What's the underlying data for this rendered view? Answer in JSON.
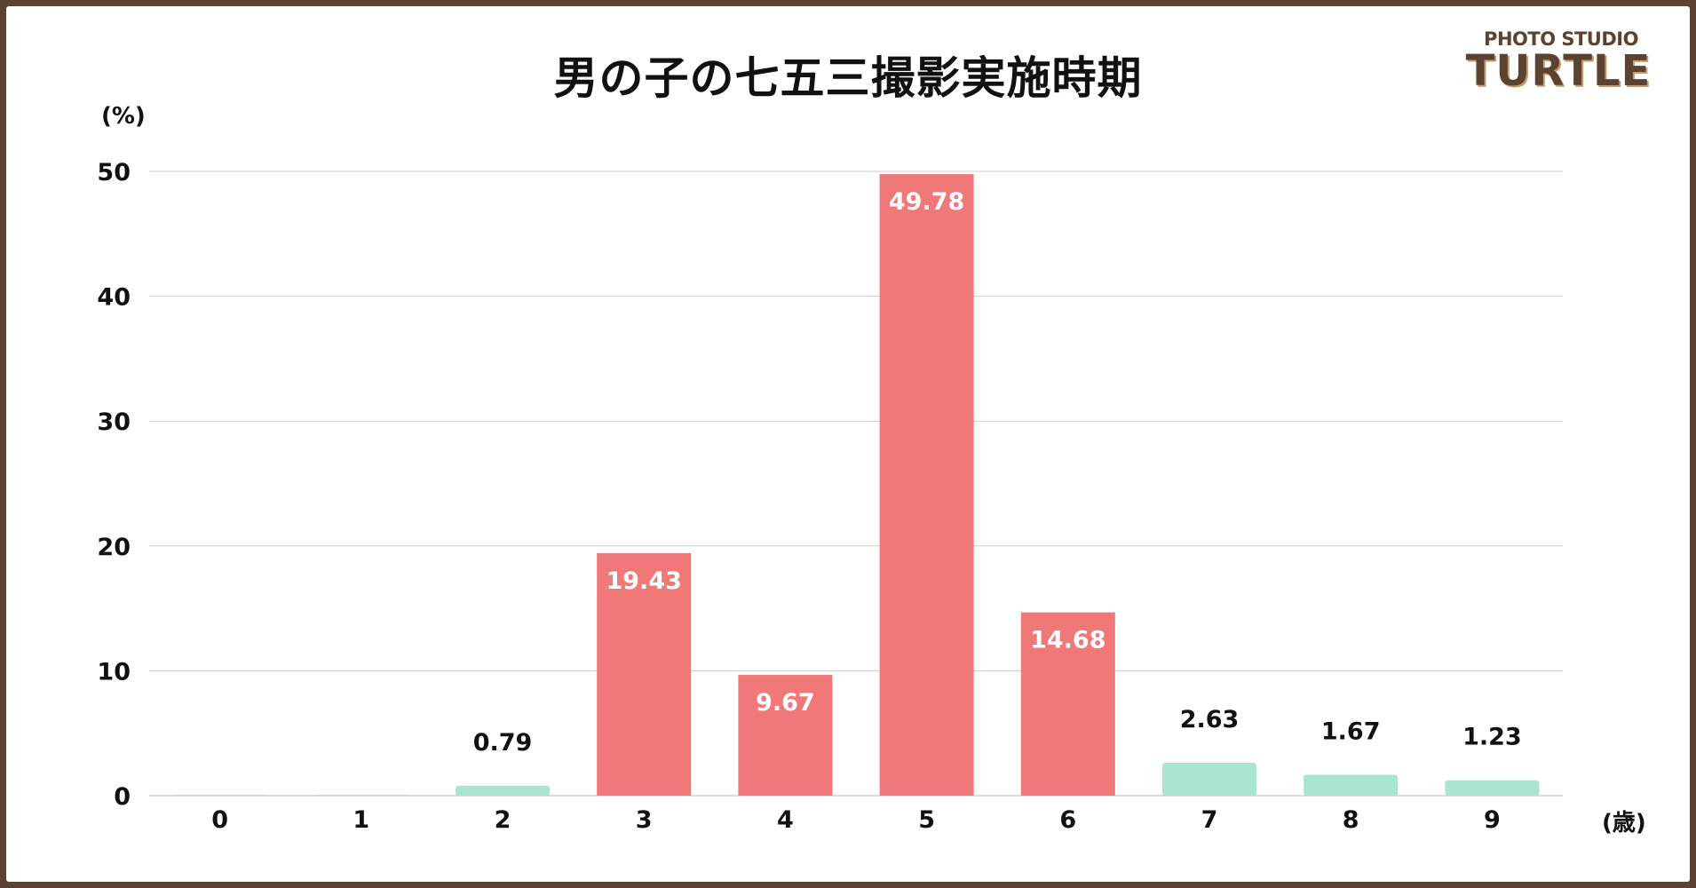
{
  "logo": {
    "line1": "PHOTO STUDIO",
    "line2": "TURTLE"
  },
  "colors": {
    "highlight": "#f07878",
    "base": "#a8e6d0",
    "frame": "#5c4230",
    "grid": "#cccccc"
  },
  "chart_data": {
    "type": "bar",
    "title": "男の子の七五三撮影実施時期",
    "ylabel": "(%)",
    "xlabel": "(歳)",
    "ylim": [
      0,
      50
    ],
    "yticks": [
      0,
      10,
      20,
      30,
      40,
      50
    ],
    "grid": true,
    "categories": [
      "0",
      "1",
      "2",
      "3",
      "4",
      "5",
      "6",
      "7",
      "8",
      "9"
    ],
    "values": [
      0,
      0,
      0.79,
      19.43,
      9.67,
      49.78,
      14.68,
      2.63,
      1.67,
      1.23
    ],
    "data_labels": [
      "",
      "",
      "0.79",
      "19.43",
      "9.67",
      "49.78",
      "14.68",
      "2.63",
      "1.67",
      "1.23"
    ],
    "highlighted": [
      "3",
      "4",
      "5",
      "6"
    ]
  }
}
